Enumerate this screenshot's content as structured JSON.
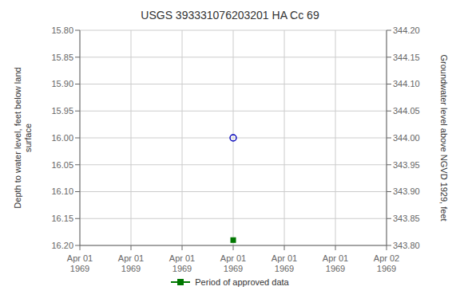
{
  "chart_data": {
    "type": "scatter",
    "title": "USGS 393331076203201 HA Cc  69",
    "ylabel": "Depth to water level, feet below land\nsurface",
    "y2label": "Groundwater level above NGVD 1929, feet",
    "categories": [
      "Apr 01\n1969",
      "Apr 01\n1969",
      "Apr 01\n1969",
      "Apr 01\n1969",
      "Apr 01\n1969",
      "Apr 01\n1969",
      "Apr 02\n1969"
    ],
    "ylim": [
      16.2,
      15.8
    ],
    "yticks": [
      {
        "value": 15.8,
        "label": "15.80"
      },
      {
        "value": 15.85,
        "label": "15.85"
      },
      {
        "value": 15.9,
        "label": "15.90"
      },
      {
        "value": 15.95,
        "label": "15.95"
      },
      {
        "value": 16.0,
        "label": "16.00"
      },
      {
        "value": 16.05,
        "label": "16.05"
      },
      {
        "value": 16.1,
        "label": "16.10"
      },
      {
        "value": 16.15,
        "label": "16.15"
      },
      {
        "value": 16.2,
        "label": "16.20"
      }
    ],
    "y2lim": [
      343.8,
      344.2
    ],
    "y2ticks": [
      {
        "value": 344.2,
        "label": "344.20"
      },
      {
        "value": 344.15,
        "label": "344.15"
      },
      {
        "value": 344.1,
        "label": "344.10"
      },
      {
        "value": 344.05,
        "label": "344.05"
      },
      {
        "value": 344.0,
        "label": "344.00"
      },
      {
        "value": 343.95,
        "label": "343.95"
      },
      {
        "value": 343.9,
        "label": "343.90"
      },
      {
        "value": 343.85,
        "label": "343.85"
      },
      {
        "value": 343.8,
        "label": "343.80"
      }
    ],
    "grid": true,
    "legend": "bottom",
    "series": [
      {
        "color": "#0000bb",
        "marker": "circle",
        "values": [
          null,
          null,
          null,
          16.0,
          null,
          null,
          null
        ]
      },
      {
        "name": "Period of approved data",
        "color": "#007700",
        "marker": "square",
        "values": [
          null,
          null,
          null,
          16.19,
          null,
          null,
          null
        ]
      }
    ]
  }
}
